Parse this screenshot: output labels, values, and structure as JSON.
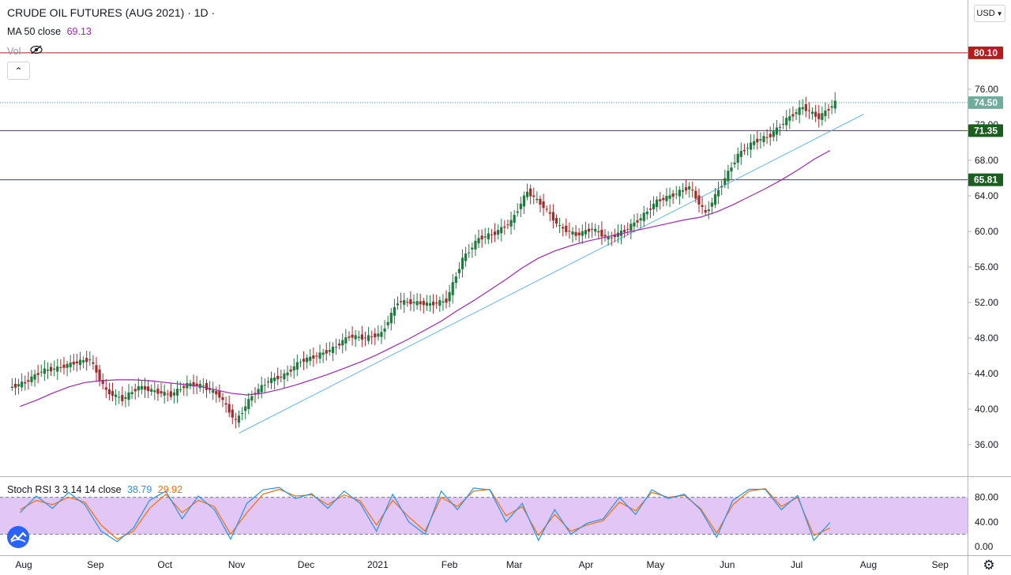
{
  "header": {
    "title": "CRUDE OIL FUTURES (AUG 2021) · 1D ·",
    "ma_label": "MA 50 close",
    "ma_value": "69.13",
    "vol_label": "Vol",
    "currency": "USD"
  },
  "colors": {
    "up": "#26a69a",
    "up_body": "#1f7a3e",
    "down": "#a52a2a",
    "ma": "#9c27b0",
    "trend": "#64b5f6",
    "resistance": "#b71c1c",
    "support": "#1b5e20",
    "stoch_k": "#2196f3",
    "stoch_d": "#ff6d00",
    "stoch_band": "#e1c6f6"
  },
  "price_axis": {
    "ticks": [
      "76.00",
      "72.00",
      "68.00",
      "64.00",
      "60.00",
      "56.00",
      "52.00",
      "48.00",
      "44.00",
      "40.00",
      "36.00"
    ]
  },
  "time_axis": {
    "labels": [
      "Aug",
      "Sep",
      "Oct",
      "Nov",
      "Dec",
      "2021",
      "Feb",
      "Mar",
      "Apr",
      "May",
      "Jun",
      "Jul",
      "Aug",
      "Sep"
    ]
  },
  "levels": [
    {
      "name": "resistance",
      "value": 80.1,
      "label": "80.10"
    },
    {
      "name": "last-price",
      "value": 74.5,
      "label": "74.50"
    },
    {
      "name": "support-upper",
      "value": 71.35,
      "label": "71.35"
    },
    {
      "name": "support-lower",
      "value": 65.81,
      "label": "65.81"
    }
  ],
  "stoch": {
    "label": "Stoch RSI 3 3 14 14 close",
    "k_value": "38.79",
    "d_value": "29.92",
    "ticks": [
      "80.00",
      "40.00",
      "0.00"
    ],
    "upper_band": 80,
    "lower_band": 20
  },
  "chart_data": {
    "type": "candlestick",
    "title": "CRUDE OIL FUTURES (AUG 2021) · 1D ·",
    "ylim": [
      33,
      81
    ],
    "x": [
      "2020-07-27",
      "2020-08-03",
      "2020-08-10",
      "2020-08-17",
      "2020-08-24",
      "2020-08-31",
      "2020-09-07",
      "2020-09-14",
      "2020-09-21",
      "2020-09-28",
      "2020-10-05",
      "2020-10-12",
      "2020-10-19",
      "2020-10-26",
      "2020-11-02",
      "2020-11-09",
      "2020-11-16",
      "2020-11-23",
      "2020-11-30",
      "2020-12-07",
      "2020-12-14",
      "2020-12-21",
      "2020-12-28",
      "2021-01-04",
      "2021-01-11",
      "2021-01-18",
      "2021-01-25",
      "2021-02-01",
      "2021-02-08",
      "2021-02-15",
      "2021-02-22",
      "2021-03-01",
      "2021-03-08",
      "2021-03-15",
      "2021-03-22",
      "2021-03-29",
      "2021-04-05",
      "2021-04-12",
      "2021-04-19",
      "2021-04-26",
      "2021-05-03",
      "2021-05-10",
      "2021-05-17",
      "2021-05-24",
      "2021-05-31",
      "2021-06-07",
      "2021-06-14",
      "2021-06-21",
      "2021-06-28",
      "2021-07-05",
      "2021-07-12"
    ],
    "close": [
      43.0,
      44.3,
      44.6,
      45.2,
      45.6,
      42.0,
      41.1,
      42.5,
      42.0,
      41.6,
      42.8,
      42.6,
      41.5,
      38.6,
      41.5,
      43.2,
      43.8,
      45.4,
      46.0,
      46.8,
      48.2,
      48.0,
      48.5,
      52.1,
      52.0,
      51.8,
      52.2,
      56.9,
      59.2,
      59.8,
      61.1,
      64.5,
      62.8,
      60.5,
      59.6,
      60.3,
      59.2,
      60.1,
      61.5,
      63.4,
      64.1,
      65.0,
      62.0,
      65.3,
      68.6,
      70.1,
      70.8,
      72.6,
      74.0,
      72.8,
      74.5
    ],
    "ma50": [
      40.3,
      41.0,
      41.8,
      42.5,
      43.0,
      43.2,
      43.3,
      43.3,
      43.2,
      43.0,
      42.8,
      42.6,
      42.2,
      41.8,
      41.6,
      41.8,
      42.2,
      42.7,
      43.3,
      43.9,
      44.6,
      45.3,
      46.1,
      47.0,
      47.9,
      48.9,
      49.9,
      51.1,
      52.2,
      53.4,
      54.6,
      55.9,
      57.0,
      57.8,
      58.4,
      58.9,
      59.3,
      59.7,
      60.1,
      60.5,
      60.9,
      61.3,
      61.6,
      62.2,
      63.0,
      63.9,
      64.8,
      65.8,
      66.9,
      68.1,
      69.1
    ],
    "trendline": [
      {
        "x": "2020-11-02",
        "y": 37.3
      },
      {
        "x": "2021-07-30",
        "y": 73.2
      }
    ],
    "stoch_k": [
      55,
      82,
      62,
      88,
      68,
      25,
      8,
      30,
      75,
      90,
      45,
      82,
      60,
      12,
      70,
      92,
      96,
      78,
      86,
      62,
      90,
      70,
      25,
      85,
      40,
      20,
      90,
      60,
      95,
      92,
      40,
      70,
      10,
      60,
      20,
      38,
      45,
      80,
      52,
      92,
      78,
      85,
      60,
      15,
      75,
      93,
      93,
      60,
      83,
      10,
      39
    ],
    "stoch_d": [
      60,
      75,
      68,
      80,
      72,
      35,
      12,
      25,
      62,
      85,
      55,
      75,
      65,
      20,
      55,
      85,
      93,
      82,
      84,
      68,
      84,
      74,
      35,
      75,
      48,
      25,
      80,
      65,
      90,
      93,
      50,
      65,
      18,
      52,
      25,
      35,
      42,
      72,
      58,
      88,
      80,
      83,
      62,
      22,
      68,
      90,
      94,
      65,
      80,
      18,
      30
    ]
  }
}
